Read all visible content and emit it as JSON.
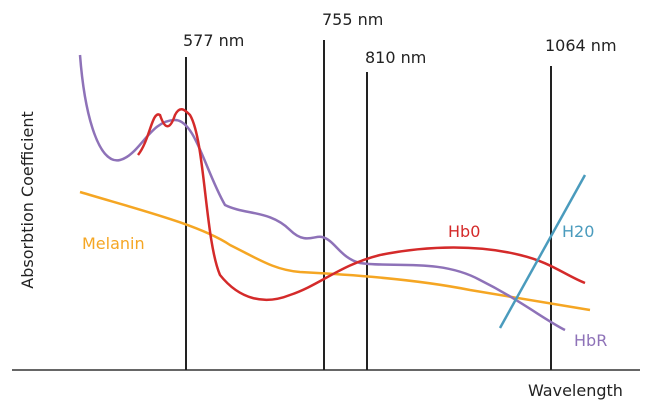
{
  "diagram": {
    "wavelengths": [
      "577 nm",
      "755 nm",
      "810 nm",
      "1064 nm"
    ],
    "x_axis_label": "Wavelength",
    "y_axis_label": "Absorbtion Coefficient",
    "curves": {
      "melanin": "Melanin",
      "hbo": "Hb0",
      "water": "H20",
      "hbr": "HbR"
    }
  }
}
